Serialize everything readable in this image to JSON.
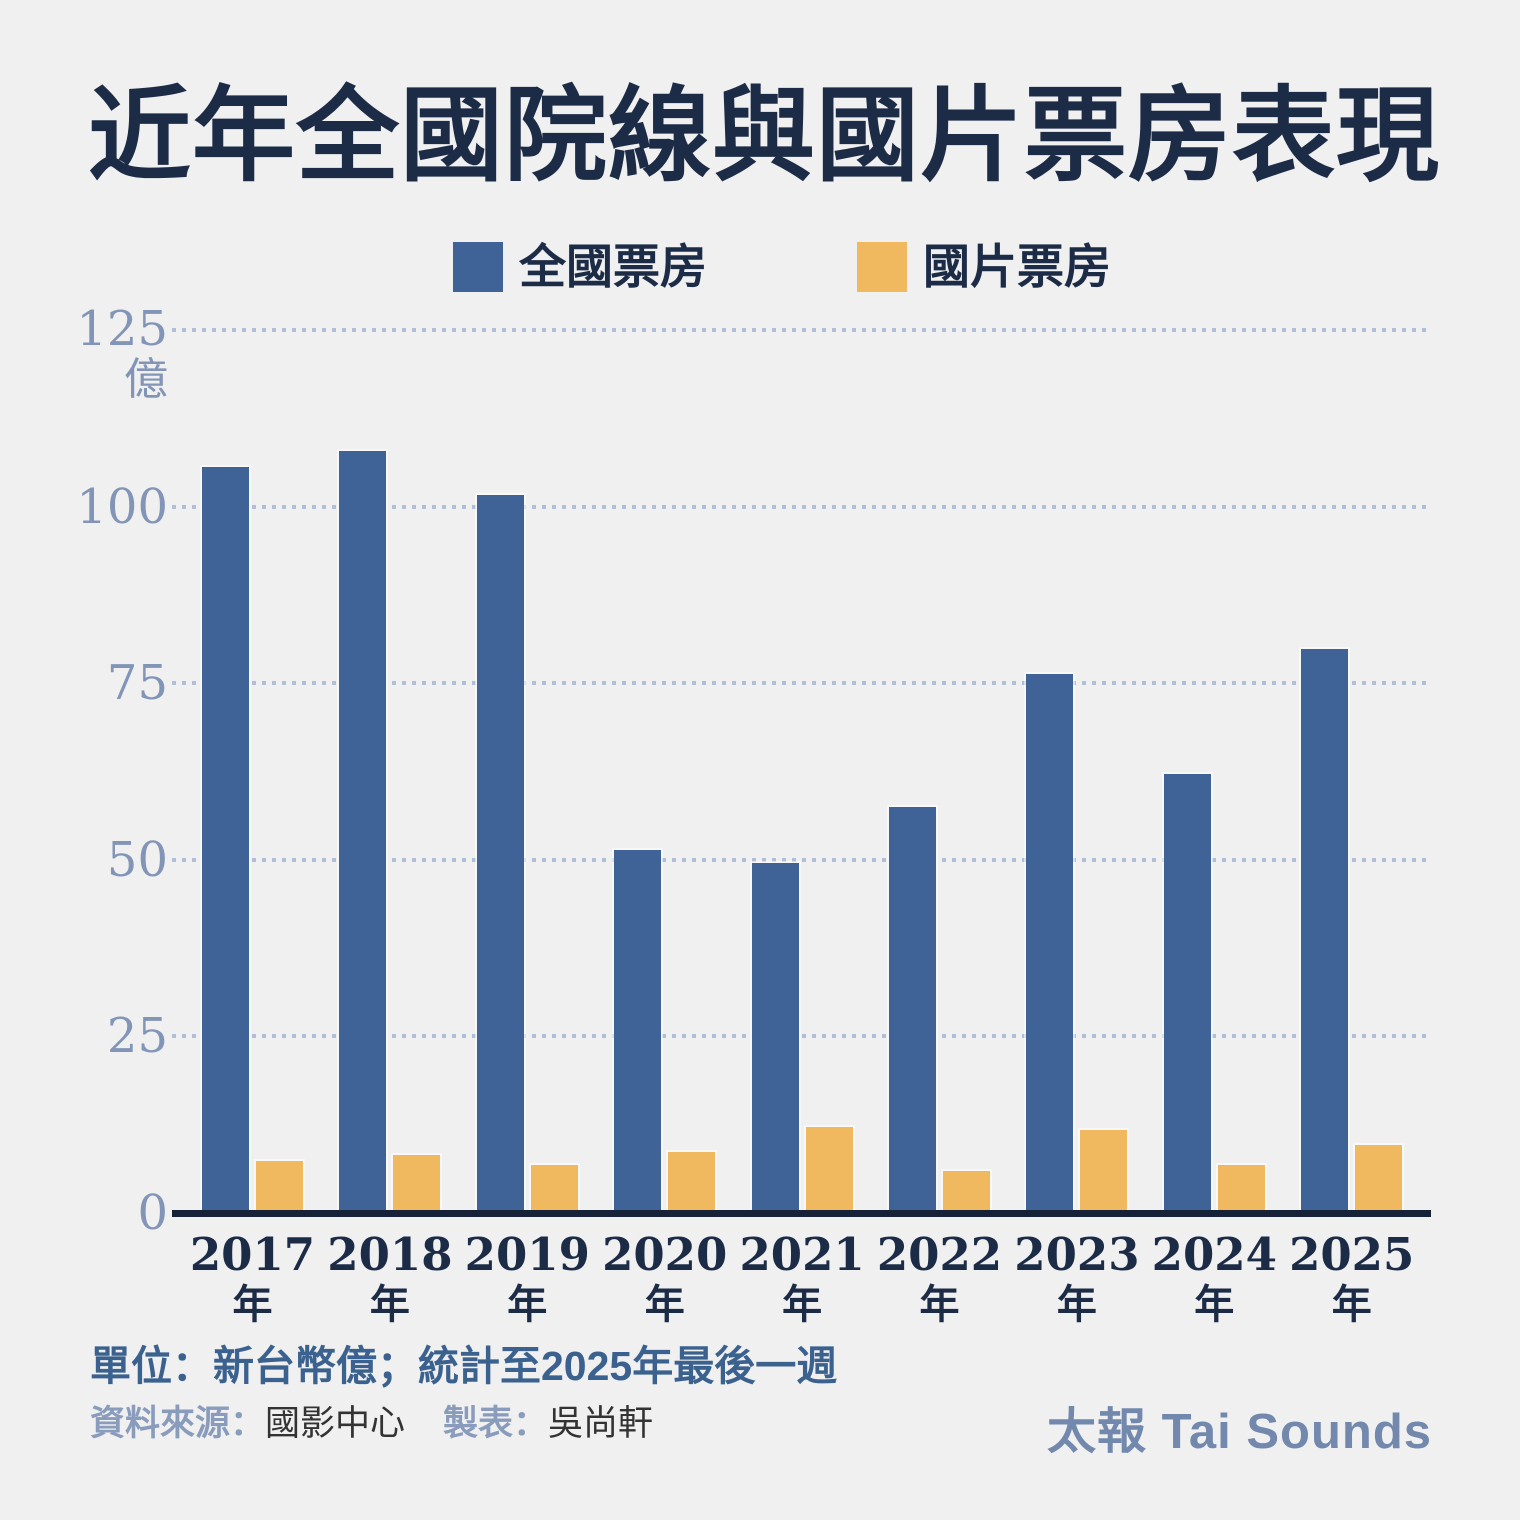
{
  "title": "近年全國院線與國片票房表現",
  "legend": [
    {
      "id": "national",
      "label": "全國票房",
      "color": "#3f6396"
    },
    {
      "id": "domestic",
      "label": "國片票房",
      "color": "#f0b95f"
    }
  ],
  "chart_data": {
    "type": "bar",
    "categories": [
      "2017",
      "2018",
      "2019",
      "2020",
      "2021",
      "2022",
      "2023",
      "2024",
      "2025"
    ],
    "category_suffix": "年",
    "series": [
      {
        "id": "national",
        "name": "全國票房",
        "color": "#3f6396",
        "values": [
          105.6,
          107.9,
          101.6,
          51.4,
          49.6,
          57.5,
          76.3,
          62.2,
          79.8
        ]
      },
      {
        "id": "domestic",
        "name": "國片票房",
        "color": "#f0b95f",
        "values": [
          7.4,
          8.2,
          6.8,
          8.7,
          12.2,
          6.0,
          11.7,
          6.8,
          9.6
        ]
      }
    ],
    "yticks": [
      0,
      25,
      50,
      75,
      100,
      125
    ],
    "ylim": [
      0,
      125
    ],
    "y_unit": "億",
    "grid": "horizontal dotted",
    "legend_position": "top"
  },
  "footer": {
    "unit_note": "單位：新台幣億；統計至2025年最後一週",
    "source_label": "資料來源：",
    "source_value": "國影中心",
    "credit_label": "製表：",
    "credit_value": "吳尚軒",
    "brand": "太報 Tai Sounds"
  }
}
